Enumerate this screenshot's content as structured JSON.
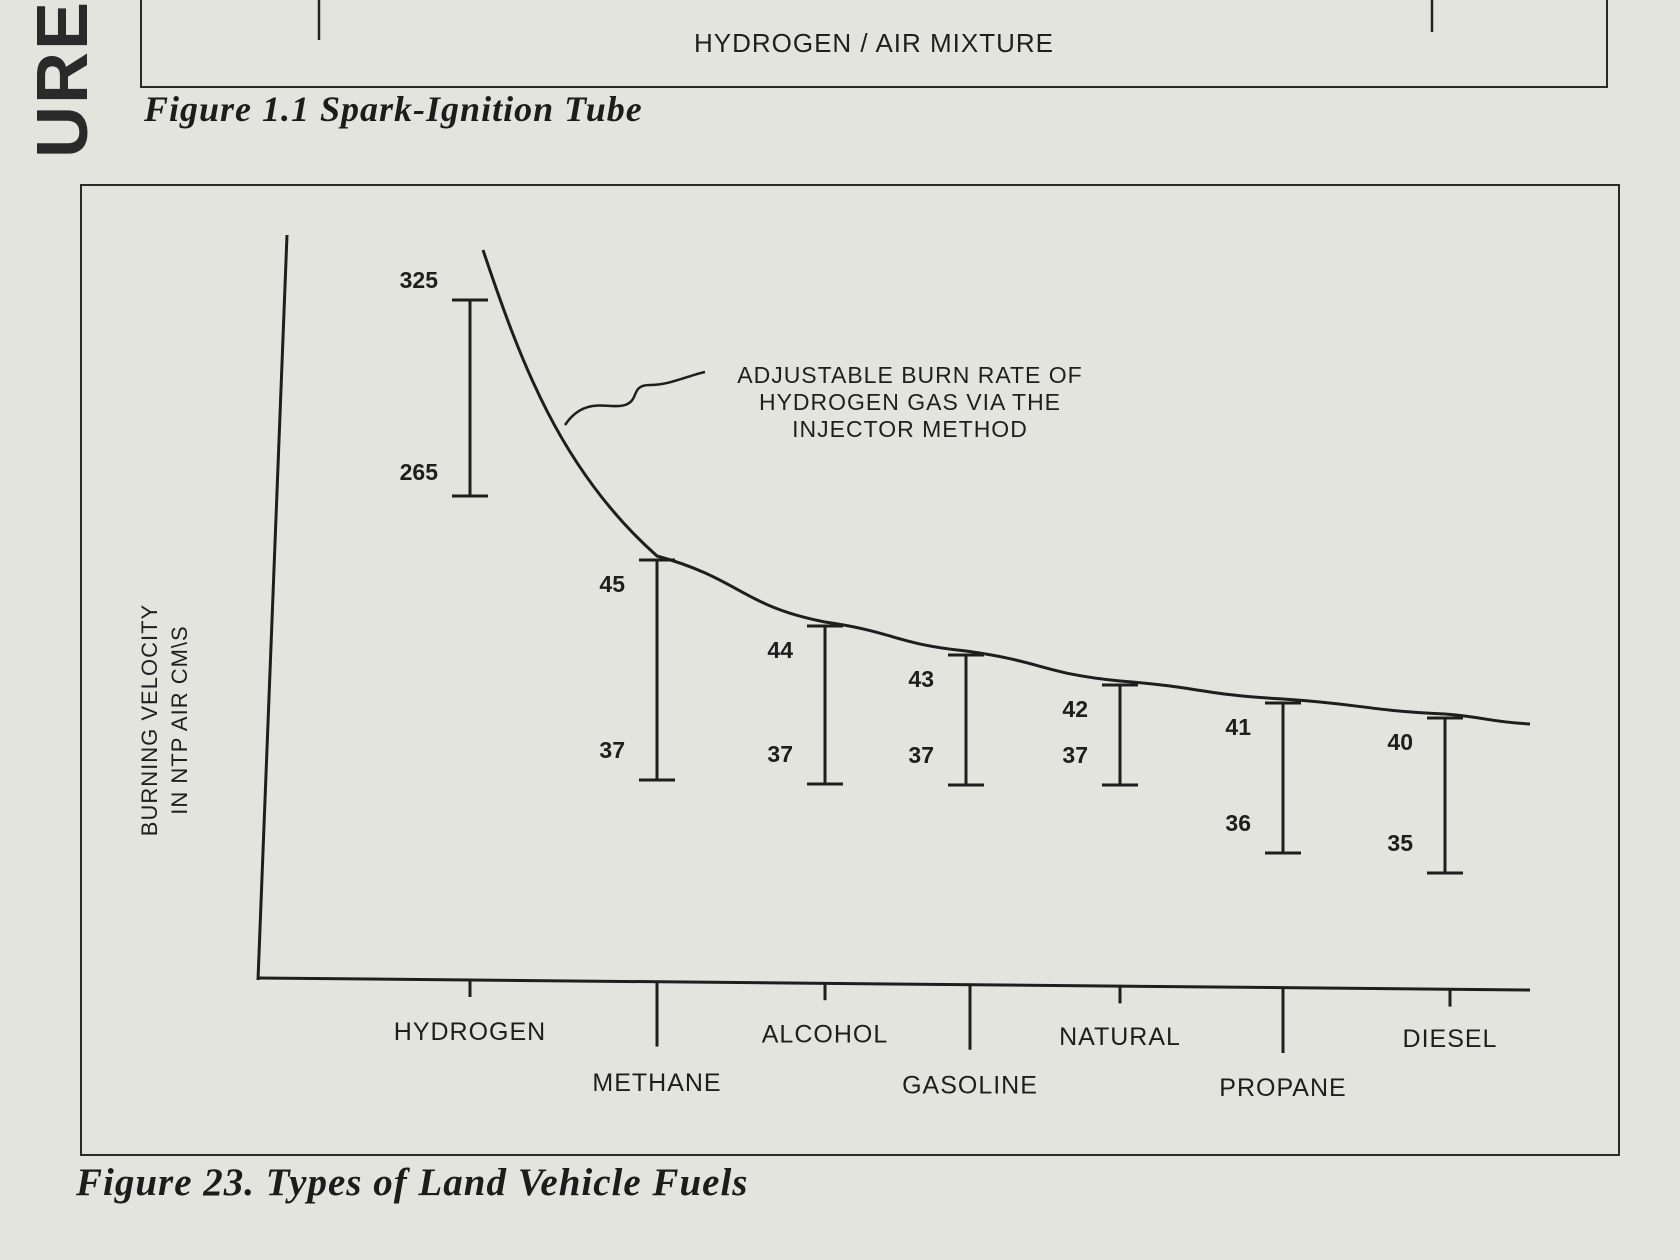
{
  "page_side_text": "URE",
  "figure_1_1": {
    "label": "HYDROGEN / AIR MIXTURE",
    "caption": "Figure 1.1 Spark-Ignition Tube"
  },
  "figure_23": {
    "caption": "Figure 23. Types of Land Vehicle Fuels"
  },
  "chart_data": {
    "type": "range",
    "ylabel_line1": "BURNING VELOCITY",
    "ylabel_line2": "IN NTP AIR CM\\S",
    "annotation": [
      "ADJUSTABLE BURN RATE OF",
      "HYDROGEN GAS VIA THE",
      "INJECTOR METHOD"
    ],
    "categories": [
      "HYDROGEN",
      "METHANE",
      "ALCOHOL",
      "GASOLINE",
      "NATURAL",
      "PROPANE",
      "DIESEL"
    ],
    "ranges": [
      {
        "category": "HYDROGEN",
        "low": 265,
        "high": 325
      },
      {
        "category": "METHANE",
        "low": 37,
        "high": 45
      },
      {
        "category": "ALCOHOL",
        "low": 37,
        "high": 44
      },
      {
        "category": "GASOLINE",
        "low": 37,
        "high": 43
      },
      {
        "category": "NATURAL",
        "low": 37,
        "high": 42
      },
      {
        "category": "PROPANE",
        "low": 36,
        "high": 41
      },
      {
        "category": "DIESEL",
        "low": 35,
        "high": 40
      }
    ],
    "low_labels": [
      "265",
      "37",
      "37",
      "37",
      "37",
      "36",
      "35"
    ],
    "high_labels": [
      "325",
      "45",
      "44",
      "43",
      "42",
      "41",
      "40"
    ],
    "grid": false,
    "legend": "none"
  }
}
